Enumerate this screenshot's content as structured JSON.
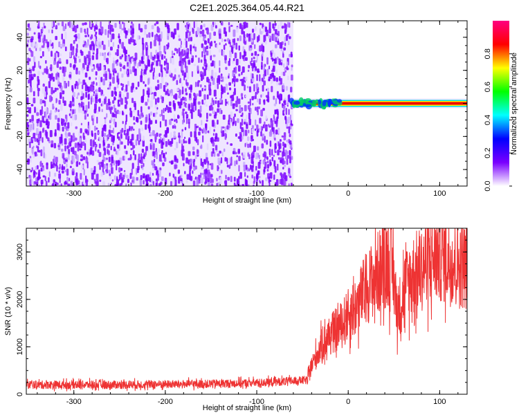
{
  "title": "C2E1.2025.364.05.44.R21",
  "chart_data": [
    {
      "type": "heatmap",
      "xlabel": "Height of straight line (km)",
      "ylabel": "Frequency (Hz)",
      "xlim": [
        -352,
        130
      ],
      "ylim": [
        -50,
        50
      ],
      "x_ticks": [
        -300,
        -200,
        -100,
        0,
        100
      ],
      "x_tick_labels": [
        "-300",
        "-200",
        "-100",
        "0",
        "100"
      ],
      "y_ticks": [
        -40,
        -20,
        0,
        20,
        40
      ],
      "y_tick_labels": [
        "-40",
        "-20",
        "0",
        "20",
        "40"
      ],
      "noise_region_x": [
        -352,
        -60
      ],
      "signal_line": {
        "x": [
          -62,
          130
        ],
        "frequency": 0
      },
      "colorbar": {
        "label": "Normalized spectral amplitude",
        "range": [
          0,
          1
        ],
        "ticks": [
          0.0,
          0.2,
          0.4,
          0.6,
          0.8
        ],
        "tick_labels": [
          "0.0",
          "0.2",
          "0.4",
          "0.6",
          "0.8"
        ],
        "colors": [
          "#ffffff",
          "#7a00ff",
          "#0000ff",
          "#00ffff",
          "#00ff00",
          "#ffff00",
          "#ff0000",
          "#ff0080"
        ]
      }
    },
    {
      "type": "line",
      "xlabel": "Height of straight line (km)",
      "ylabel": "SNR (10 * v/v)",
      "xlim": [
        -352,
        130
      ],
      "ylim": [
        0,
        3500
      ],
      "x_ticks": [
        -300,
        -200,
        -100,
        0,
        100
      ],
      "x_tick_labels": [
        "-300",
        "-200",
        "-100",
        "0",
        "100"
      ],
      "y_ticks": [
        0,
        1000,
        2000,
        3000
      ],
      "y_tick_labels": [
        "0",
        "1000",
        "2000",
        "3000"
      ],
      "color": "#ee3333",
      "series": [
        {
          "x": [
            -352,
            -300,
            -250,
            -200,
            -150,
            -100,
            -60,
            -45,
            -40,
            -30,
            -20,
            -10,
            0,
            10,
            20,
            30,
            40,
            45,
            50,
            52,
            55,
            60,
            70,
            80,
            90,
            100,
            110,
            120,
            130
          ],
          "y": [
            200,
            200,
            200,
            210,
            220,
            240,
            280,
            300,
            600,
            1000,
            1250,
            1400,
            1650,
            1900,
            2250,
            2500,
            2750,
            2800,
            2450,
            2000,
            1750,
            2200,
            2500,
            2650,
            2850,
            2950,
            2850,
            2750,
            2700
          ]
        }
      ]
    }
  ]
}
